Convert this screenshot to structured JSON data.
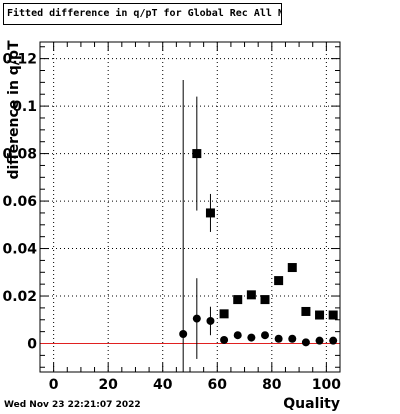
{
  "chart_data": {
    "type": "scatter",
    "title": "Fitted difference in q/pT for Global Rec All NoHits",
    "xlabel": "Quality",
    "ylabel": "difference in q/pT",
    "timestamp": "Wed Nov 23 22:21:07 2022",
    "xlim": [
      -5,
      105
    ],
    "ylim": [
      -0.012,
      0.127
    ],
    "x_ticks": [
      0,
      20,
      40,
      60,
      80,
      100
    ],
    "y_ticks": [
      0,
      0.02,
      0.04,
      0.06,
      0.08,
      0.1,
      0.12
    ],
    "x_tick_labels": [
      "0",
      "20",
      "40",
      "60",
      "80",
      "100"
    ],
    "y_tick_labels": [
      "0",
      "0.02",
      "0.04",
      "0.06",
      "0.08",
      "0.1",
      "0.12"
    ],
    "grid": true,
    "reference_line": {
      "y": 0,
      "color": "#e02020"
    },
    "series": [
      {
        "marker": "square",
        "color": "#000000",
        "points": [
          {
            "x": 52.5,
            "y": 0.08,
            "yerr": 0.024
          },
          {
            "x": 57.5,
            "y": 0.055,
            "yerr": 0.008
          },
          {
            "x": 62.5,
            "y": 0.0125,
            "yerr": 0.001
          },
          {
            "x": 67.5,
            "y": 0.0185,
            "yerr": 0.001
          },
          {
            "x": 72.5,
            "y": 0.0205,
            "yerr": 0.001
          },
          {
            "x": 77.5,
            "y": 0.0185,
            "yerr": 0.001
          },
          {
            "x": 82.5,
            "y": 0.0265,
            "yerr": 0.001
          },
          {
            "x": 87.5,
            "y": 0.032,
            "yerr": 0.001
          },
          {
            "x": 92.5,
            "y": 0.0135,
            "yerr": 0.001
          },
          {
            "x": 97.5,
            "y": 0.012,
            "yerr": 0.001
          },
          {
            "x": 102.5,
            "y": 0.012,
            "yerr": 0.001
          }
        ]
      },
      {
        "marker": "circle",
        "color": "#000000",
        "points": [
          {
            "x": 47.5,
            "y": 0.004,
            "yerr": 0.107
          },
          {
            "x": 52.5,
            "y": 0.0105,
            "yerr": 0.017
          },
          {
            "x": 57.5,
            "y": 0.0095,
            "yerr": 0.006
          },
          {
            "x": 62.5,
            "y": 0.0015,
            "yerr": 0.001
          },
          {
            "x": 67.5,
            "y": 0.0035,
            "yerr": 0.001
          },
          {
            "x": 72.5,
            "y": 0.0025,
            "yerr": 0.001
          },
          {
            "x": 77.5,
            "y": 0.0035,
            "yerr": 0.001
          },
          {
            "x": 82.5,
            "y": 0.002,
            "yerr": 0.001
          },
          {
            "x": 87.5,
            "y": 0.002,
            "yerr": 0.001
          },
          {
            "x": 92.5,
            "y": 0.0005,
            "yerr": 0.001
          },
          {
            "x": 97.5,
            "y": 0.0012,
            "yerr": 0.001
          },
          {
            "x": 102.5,
            "y": 0.0012,
            "yerr": 0.001
          }
        ]
      }
    ]
  }
}
